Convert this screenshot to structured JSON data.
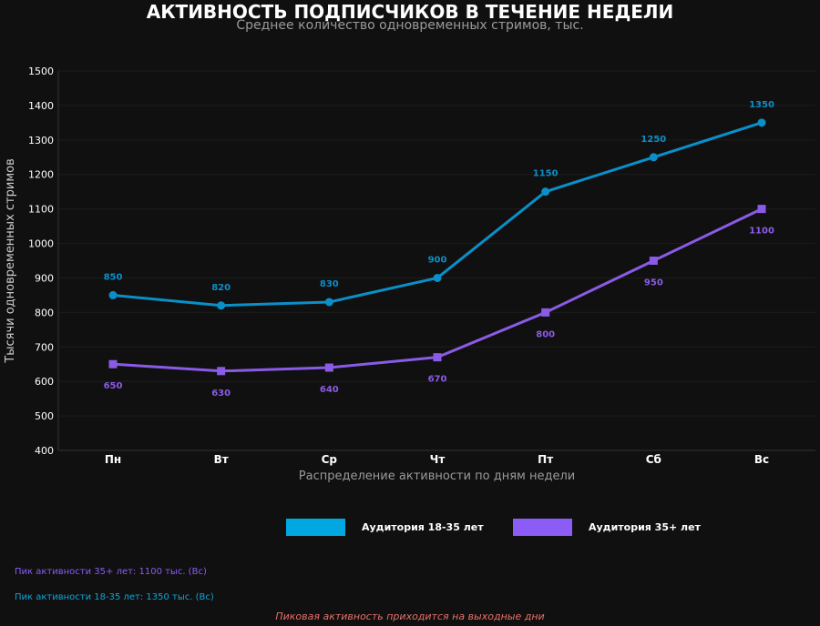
{
  "chart_data": {
    "type": "line",
    "title": "АКТИВНОСТЬ ПОДПИСЧИКОВ В ТЕЧЕНИЕ НЕДЕЛИ",
    "subtitle": "Среднее количество одновременных стримов, тыс.",
    "xlabel": "Распределение активности по дням недели",
    "ylabel": "Тысячи одновременных стримов",
    "categories": [
      "Пн",
      "Вт",
      "Ср",
      "Чт",
      "Пт",
      "Сб",
      "Вс"
    ],
    "ylim": [
      400,
      1500
    ],
    "yticks": [
      400,
      500,
      600,
      700,
      800,
      900,
      1000,
      1100,
      1200,
      1300,
      1400,
      1500
    ],
    "grid": true,
    "legend_position": "bottom-center",
    "series": [
      {
        "name": "Аудитория 18-35 лет",
        "values": [
          850,
          820,
          830,
          900,
          1150,
          1250,
          1350
        ],
        "color": "#0a8fc9",
        "legend_color": "#00a7e1",
        "marker": "circle",
        "labels": "above"
      },
      {
        "name": "Аудитория 35+ лет",
        "values": [
          650,
          630,
          640,
          670,
          800,
          950,
          1100
        ],
        "color": "#8a5be6",
        "legend_color": "#8b5cf6",
        "marker": "square",
        "labels": "below"
      }
    ]
  },
  "notes": {
    "peak_35": "Пик активности 35+ лет: 1100 тыс. (Вс)",
    "peak_18": "Пик активности 18-35 лет: 1350 тыс. (Вс)",
    "weekend": "Пиковая активность приходится на выходные дни"
  },
  "colors": {
    "background": "#101010",
    "axis_text": "#ffffff",
    "muted_text": "#9a9a9a",
    "note_35": "#8b5cf6",
    "note_18": "#0ea5d9",
    "weekend_note": "#e5706a"
  }
}
